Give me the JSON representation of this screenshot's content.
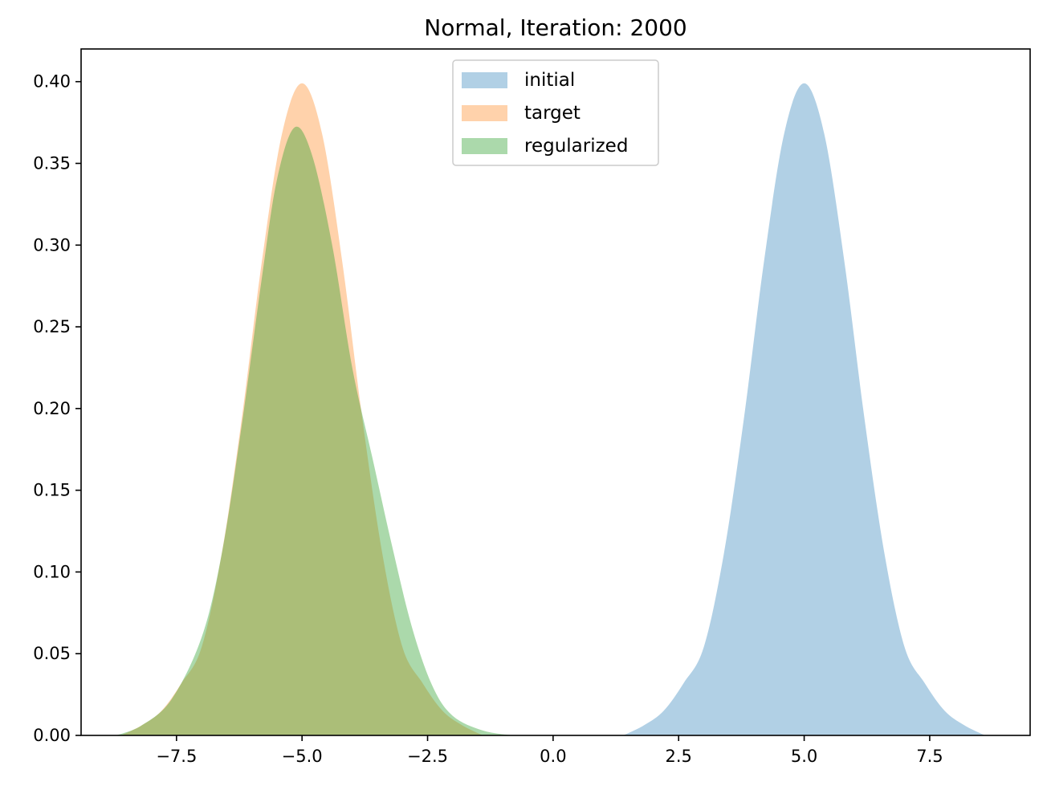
{
  "chart_data": {
    "type": "area",
    "title": "Normal, Iteration: 2000",
    "xlabel": "",
    "ylabel": "",
    "xlim": [
      -9.4,
      9.5
    ],
    "ylim": [
      0.0,
      0.42
    ],
    "xticks": [
      -7.5,
      -5.0,
      -2.5,
      0.0,
      2.5,
      5.0,
      7.5
    ],
    "xtick_labels": [
      "−7.5",
      "−5.0",
      "−2.5",
      "0.0",
      "2.5",
      "5.0",
      "7.5"
    ],
    "yticks": [
      0.0,
      0.05,
      0.1,
      0.15,
      0.2,
      0.25,
      0.3,
      0.35,
      0.4
    ],
    "ytick_labels": [
      "0.00",
      "0.05",
      "0.10",
      "0.15",
      "0.20",
      "0.25",
      "0.30",
      "0.35",
      "0.40"
    ],
    "grid": false,
    "legend_position": "top-center",
    "series": [
      {
        "name": "initial",
        "color": "#1f77b4",
        "alpha": 0.35,
        "x": [
          1.4,
          1.8,
          2.2,
          2.6,
          3.0,
          3.4,
          3.8,
          4.2,
          4.6,
          5.0,
          5.4,
          5.8,
          6.2,
          6.6,
          7.0,
          7.4,
          7.8,
          8.2,
          8.6
        ],
        "y": [
          0.0,
          0.006,
          0.015,
          0.032,
          0.054,
          0.111,
          0.194,
          0.29,
          0.368,
          0.399,
          0.368,
          0.29,
          0.194,
          0.111,
          0.054,
          0.032,
          0.015,
          0.006,
          0.0
        ]
      },
      {
        "name": "target",
        "color": "#ff7f0e",
        "alpha": 0.35,
        "x": [
          -8.6,
          -8.2,
          -7.8,
          -7.4,
          -7.0,
          -6.6,
          -6.2,
          -5.8,
          -5.4,
          -5.0,
          -4.6,
          -4.2,
          -3.8,
          -3.4,
          -3.0,
          -2.6,
          -2.2,
          -1.8,
          -1.4
        ],
        "y": [
          0.0,
          0.006,
          0.015,
          0.032,
          0.054,
          0.111,
          0.194,
          0.29,
          0.368,
          0.399,
          0.368,
          0.29,
          0.194,
          0.111,
          0.054,
          0.032,
          0.015,
          0.006,
          0.0
        ]
      },
      {
        "name": "regularized",
        "color": "#2ca02c",
        "alpha": 0.4,
        "x": [
          -8.7,
          -8.2,
          -7.6,
          -7.0,
          -6.6,
          -6.2,
          -5.8,
          -5.5,
          -5.15,
          -4.8,
          -4.4,
          -4.0,
          -3.6,
          -3.2,
          -2.8,
          -2.4,
          -2.0,
          -1.4,
          -0.8
        ],
        "y": [
          0.0,
          0.006,
          0.022,
          0.06,
          0.111,
          0.19,
          0.28,
          0.34,
          0.372,
          0.355,
          0.3,
          0.225,
          0.17,
          0.115,
          0.065,
          0.03,
          0.012,
          0.003,
          0.0
        ]
      }
    ]
  }
}
